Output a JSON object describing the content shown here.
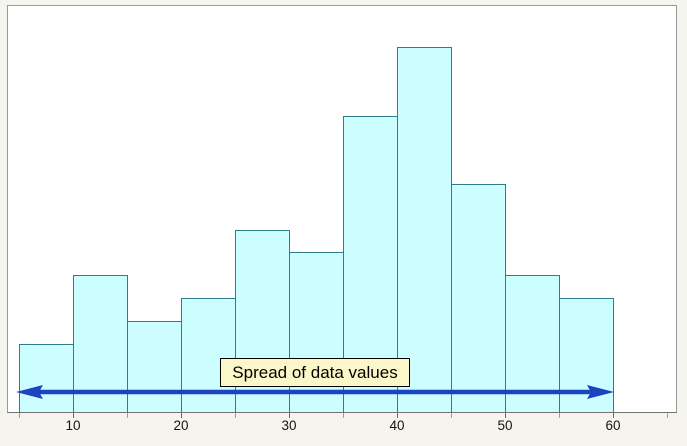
{
  "page": {
    "background_color": "#f6f4ee",
    "frame_border_color": "#9b9b95",
    "plot_background_color": "#ffffff"
  },
  "chart": {
    "bar_fill_color": "#ccfdff",
    "bar_stroke_color": "#2f7d89",
    "arrow_color": "#1c44bf",
    "annotation_bg_color": "#fbf7c8",
    "annotation_border_color": "#000000"
  },
  "chart_data": {
    "type": "bar",
    "subtype": "histogram",
    "title": "",
    "xlabel": "",
    "ylabel": "",
    "grid": false,
    "bin_width": 5,
    "bin_edges": [
      5,
      10,
      15,
      20,
      25,
      30,
      35,
      40,
      45,
      50,
      55,
      60
    ],
    "frequencies": [
      3,
      6,
      4,
      5,
      8,
      7,
      13,
      16,
      10,
      6,
      5
    ],
    "x_range_shown": [
      5,
      65
    ],
    "x_ticks": [
      5,
      10,
      15,
      20,
      25,
      30,
      35,
      40,
      45,
      50,
      55,
      60,
      65
    ],
    "x_tick_labels": [
      10,
      20,
      30,
      40,
      50,
      60
    ],
    "y_axis_shown": false,
    "annotation": "Spread of data values",
    "arrow": {
      "description": "horizontal double-headed arrow spanning the data range",
      "from_x_value": 5,
      "to_x_value": 60
    }
  }
}
